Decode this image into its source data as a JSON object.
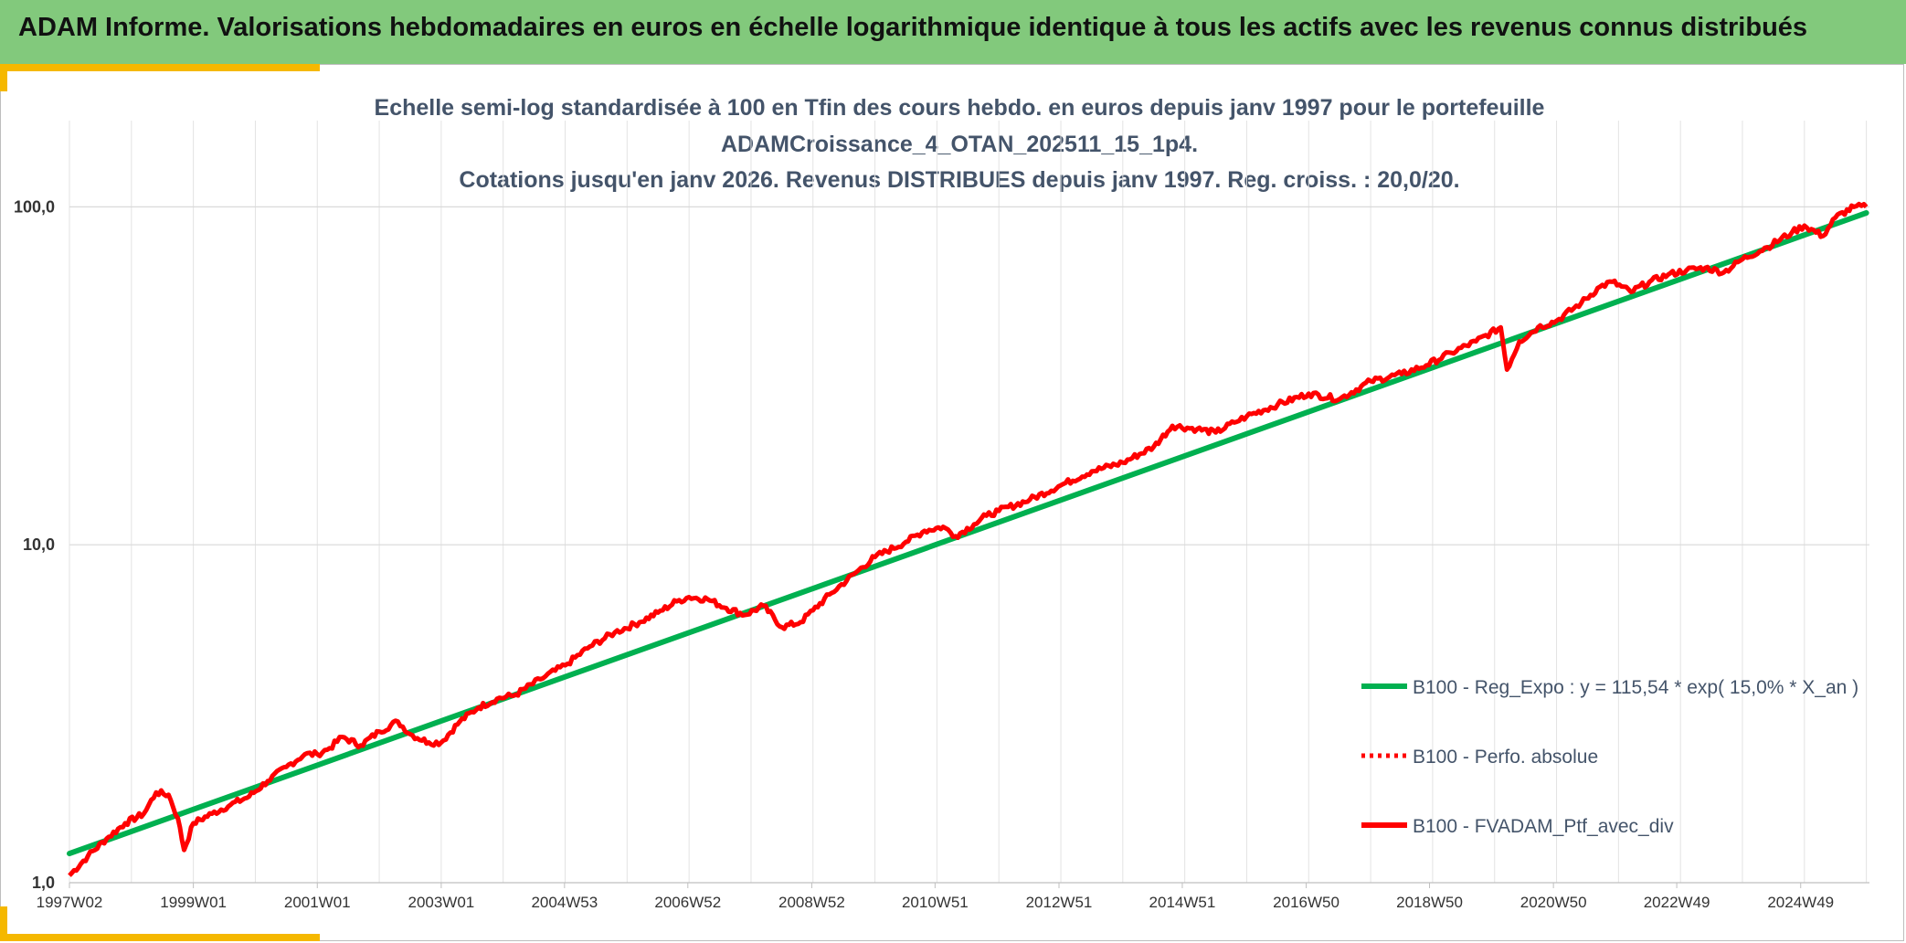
{
  "header": {
    "title": "ADAM Informe. Valorisations hebdomadaires en euros en échelle logarithmique identique à tous les actifs avec les revenus connus distribués"
  },
  "colors": {
    "header_bg": "#82c97c",
    "accent": "#f5b800",
    "series_regression": "#00b050",
    "series_portfolio": "#ff0000"
  },
  "chart_data": {
    "type": "line",
    "title_lines": [
      "Echelle semi-log standardisée à 100 en Tfin des cours hebdo. en euros depuis janv 1997 pour le portefeuille",
      "ADAMCroissance_4_OTAN_202511_15_1p4.",
      "Cotations jusqu'en janv 2026. Revenus DISTRIBUES depuis janv 1997. Reg. croiss. : 20,0/20."
    ],
    "y_scale": "log",
    "ylim": [
      1,
      180
    ],
    "y_ticks": [
      1,
      10,
      100
    ],
    "y_tick_labels": [
      "1,0",
      "10,0",
      "100,0"
    ],
    "xlim": [
      1997.0,
      2026.05
    ],
    "x_ticks": [
      1997.0,
      1999.0,
      2001.0,
      2003.0,
      2004.99,
      2006.98,
      2008.98,
      2010.97,
      2012.97,
      2014.96,
      2016.96,
      2018.95,
      2020.95,
      2022.94,
      2024.94
    ],
    "x_tick_labels": [
      "1997W02",
      "1999W01",
      "2001W01",
      "2003W01",
      "2004W53",
      "2006W52",
      "2008W52",
      "2010W51",
      "2012W51",
      "2014W51",
      "2016W50",
      "2018W50",
      "2020W50",
      "2022W49",
      "2024W49"
    ],
    "grid": true,
    "legend_position": "bottom-right",
    "series": [
      {
        "name": "B100 - Reg_Expo : y = 115,54 * exp( 15,0% *  X_an )",
        "style": "solid-green",
        "x": [
          1997.0,
          2026.0
        ],
        "y": [
          1.22,
          96.0
        ]
      },
      {
        "name": "B100 - Perfo. absolue",
        "style": "dotted-red",
        "x": [],
        "y": []
      },
      {
        "name": "B100 - FVADAM_Ptf_avec_div",
        "style": "solid-red",
        "x": [
          1997.0,
          1997.3,
          1997.6,
          1997.9,
          1998.2,
          1998.4,
          1998.6,
          1998.75,
          1998.85,
          1999.0,
          1999.3,
          1999.6,
          1999.9,
          2000.2,
          2000.5,
          2000.8,
          2001.0,
          2001.2,
          2001.4,
          2001.7,
          2002.0,
          2002.3,
          2002.5,
          2002.8,
          2003.0,
          2003.3,
          2003.6,
          2003.9,
          2004.2,
          2004.6,
          2005.0,
          2005.4,
          2005.8,
          2006.2,
          2006.5,
          2006.8,
          2007.0,
          2007.3,
          2007.6,
          2007.9,
          2008.2,
          2008.5,
          2008.8,
          2009.0,
          2009.3,
          2009.7,
          2010.0,
          2010.5,
          2010.8,
          2011.1,
          2011.3,
          2011.6,
          2011.8,
          2012.0,
          2012.5,
          2013.0,
          2013.5,
          2014.0,
          2014.5,
          2014.8,
          2015.2,
          2015.5,
          2015.8,
          2016.0,
          2016.5,
          2017.0,
          2017.5,
          2018.0,
          2018.5,
          2018.9,
          2019.3,
          2019.7,
          2020.1,
          2020.2,
          2020.4,
          2020.7,
          2021.0,
          2021.4,
          2021.7,
          2021.9,
          2022.2,
          2022.5,
          2022.8,
          2023.1,
          2023.4,
          2023.7,
          2024.0,
          2024.4,
          2024.8,
          2025.0,
          2025.3,
          2025.5,
          2025.8,
          2026.0
        ],
        "y": [
          1.05,
          1.2,
          1.35,
          1.5,
          1.6,
          1.85,
          1.82,
          1.55,
          1.25,
          1.5,
          1.6,
          1.7,
          1.8,
          2.0,
          2.2,
          2.4,
          2.4,
          2.5,
          2.7,
          2.55,
          2.8,
          3.0,
          2.75,
          2.6,
          2.6,
          3.0,
          3.3,
          3.5,
          3.6,
          4.0,
          4.4,
          5.0,
          5.5,
          5.9,
          6.3,
          6.8,
          7.0,
          6.9,
          6.5,
          6.2,
          6.6,
          5.7,
          5.9,
          6.4,
          7.2,
          8.3,
          9.2,
          10.2,
          11.0,
          11.3,
          10.6,
          11.5,
          12.2,
          12.6,
          13.6,
          15.0,
          16.5,
          17.5,
          19.5,
          22.5,
          22.0,
          21.5,
          23.0,
          24.0,
          26.0,
          28.0,
          27.0,
          30.5,
          32.0,
          34.0,
          37.0,
          40.0,
          44.0,
          33.0,
          40.0,
          44.0,
          46.0,
          52.0,
          58.0,
          60.0,
          56.0,
          60.0,
          63.0,
          65.0,
          66.0,
          64.0,
          70.0,
          76.0,
          84.0,
          88.0,
          82.0,
          93.0,
          100.0,
          100.0
        ]
      }
    ]
  }
}
